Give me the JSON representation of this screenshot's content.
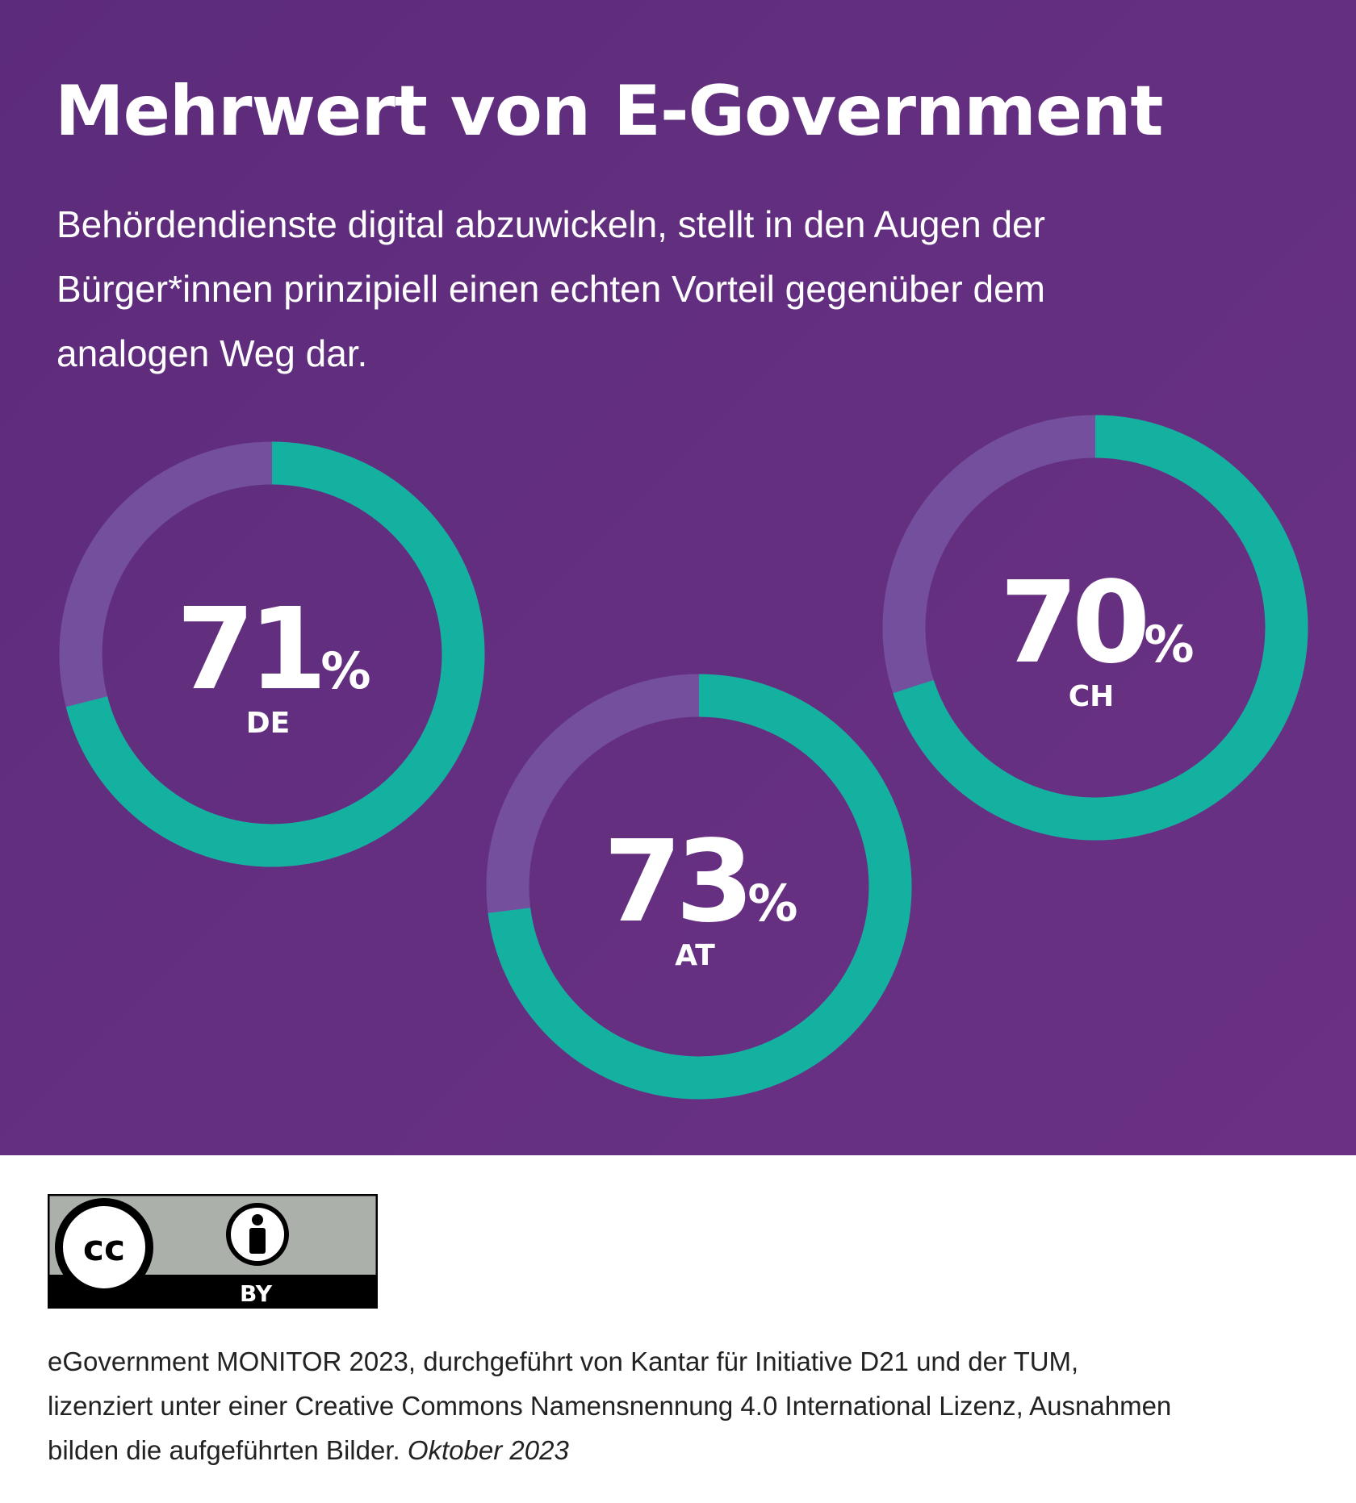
{
  "title": "Mehrwert von E-Government",
  "subtitle": "Behördendienste digital abzuwickeln, stellt in den Augen der Bürger*innen prinzipiell einen echten Vorteil gegenüber dem analogen Weg dar.",
  "colors": {
    "background": "#5f2d7d",
    "filled": "#14b1a0",
    "track": "#744f9e",
    "text": "#ffffff"
  },
  "chart_data": {
    "type": "pie",
    "variant": "donut",
    "unit": "%",
    "series": [
      {
        "name": "DE",
        "value": 71
      },
      {
        "name": "AT",
        "value": 73
      },
      {
        "name": "CH",
        "value": 70
      }
    ]
  },
  "license_badge": {
    "text": "BY",
    "icon": "creative-commons-by"
  },
  "footer": {
    "text": "eGovernment MONITOR 2023, durchgeführt von Kantar für Initiative D21 und der TUM, lizenziert unter einer Creative Commons Namensnennung 4.0 International Lizenz, Ausnahmen bilden die aufgeführten Bilder.",
    "date": "Oktober 2023"
  }
}
